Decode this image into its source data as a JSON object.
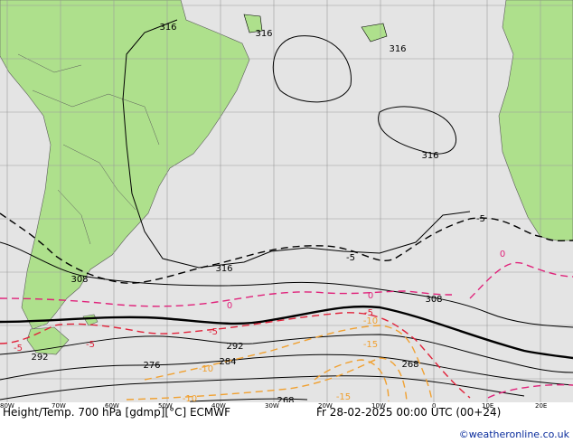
{
  "caption": "Height/Temp. 700 hPa [gdmp][°C] ECMWF",
  "datetime": "Fr 28-02-2025 00:00 UTC (00+24)",
  "credit": "©weatheronline.co.uk",
  "longitude_labels": [
    "80W",
    "70W",
    "60W",
    "50W",
    "40W",
    "30W",
    "20W",
    "10W",
    "0",
    "10E",
    "20E"
  ],
  "height_labels": [
    "316",
    "316",
    "316",
    "316",
    "316",
    "308",
    "308",
    "292",
    "292",
    "284",
    "276",
    "268",
    "268"
  ],
  "temp_labels": [
    "-5",
    "-5",
    "0",
    "0",
    "0",
    "-5",
    "-5",
    "-5",
    "-10",
    "-10",
    "-10",
    "-15",
    "-15",
    "-5"
  ],
  "colors": {
    "land": "#aee08c",
    "sea": "#e4e4e4",
    "grid": "#9a9a9a",
    "height": "#000000",
    "temp_neg": "#e0223a",
    "temp_zero": "#e0227a",
    "temp_cold": "#f0a030",
    "temp_pos": "#000000"
  }
}
